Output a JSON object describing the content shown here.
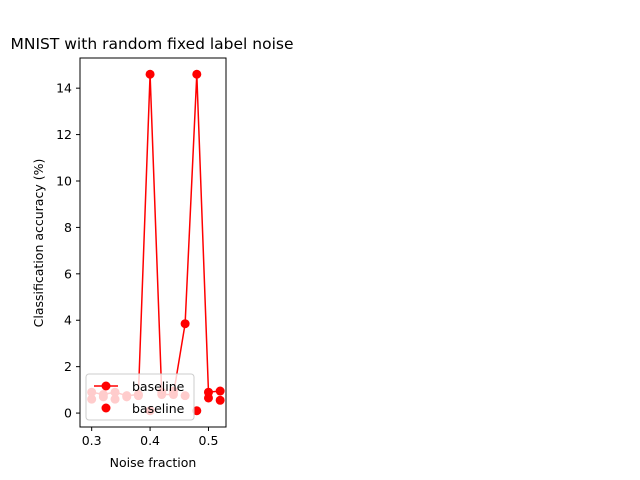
{
  "chart_data": {
    "type": "line",
    "title": "MNIST with random fixed label noise",
    "xlabel": "Noise fraction",
    "ylabel": "Classification accuracy (%)",
    "xlim": [
      0.28,
      0.53
    ],
    "ylim": [
      -0.6,
      15.3
    ],
    "xticks": [
      0.3,
      0.4,
      0.5
    ],
    "xtick_labels": [
      "0.3",
      "0.4",
      "0.5"
    ],
    "yticks": [
      0,
      2,
      4,
      6,
      8,
      10,
      12,
      14
    ],
    "ytick_labels": [
      "0",
      "2",
      "4",
      "6",
      "8",
      "10",
      "12",
      "14"
    ],
    "grid": false,
    "legend_position": "lower-left",
    "color": "#ff0000",
    "series": [
      {
        "name": "baseline",
        "x": [
          0.3,
          0.32,
          0.34,
          0.36,
          0.38,
          0.4,
          0.42,
          0.44,
          0.46,
          0.48,
          0.5,
          0.52
        ],
        "y": [
          0.9,
          0.8,
          0.9,
          0.75,
          0.8,
          14.6,
          0.8,
          0.8,
          3.85,
          14.6,
          0.9,
          0.95
        ]
      },
      {
        "name": "baseline",
        "x": [
          0.3,
          0.32,
          0.34,
          0.36,
          0.38,
          0.4,
          0.42,
          0.44,
          0.46,
          0.48,
          0.5,
          0.52
        ],
        "y": [
          0.6,
          0.7,
          0.6,
          0.7,
          0.75,
          0.1,
          0.9,
          0.95,
          0.75,
          0.1,
          0.65,
          0.55
        ]
      }
    ]
  }
}
